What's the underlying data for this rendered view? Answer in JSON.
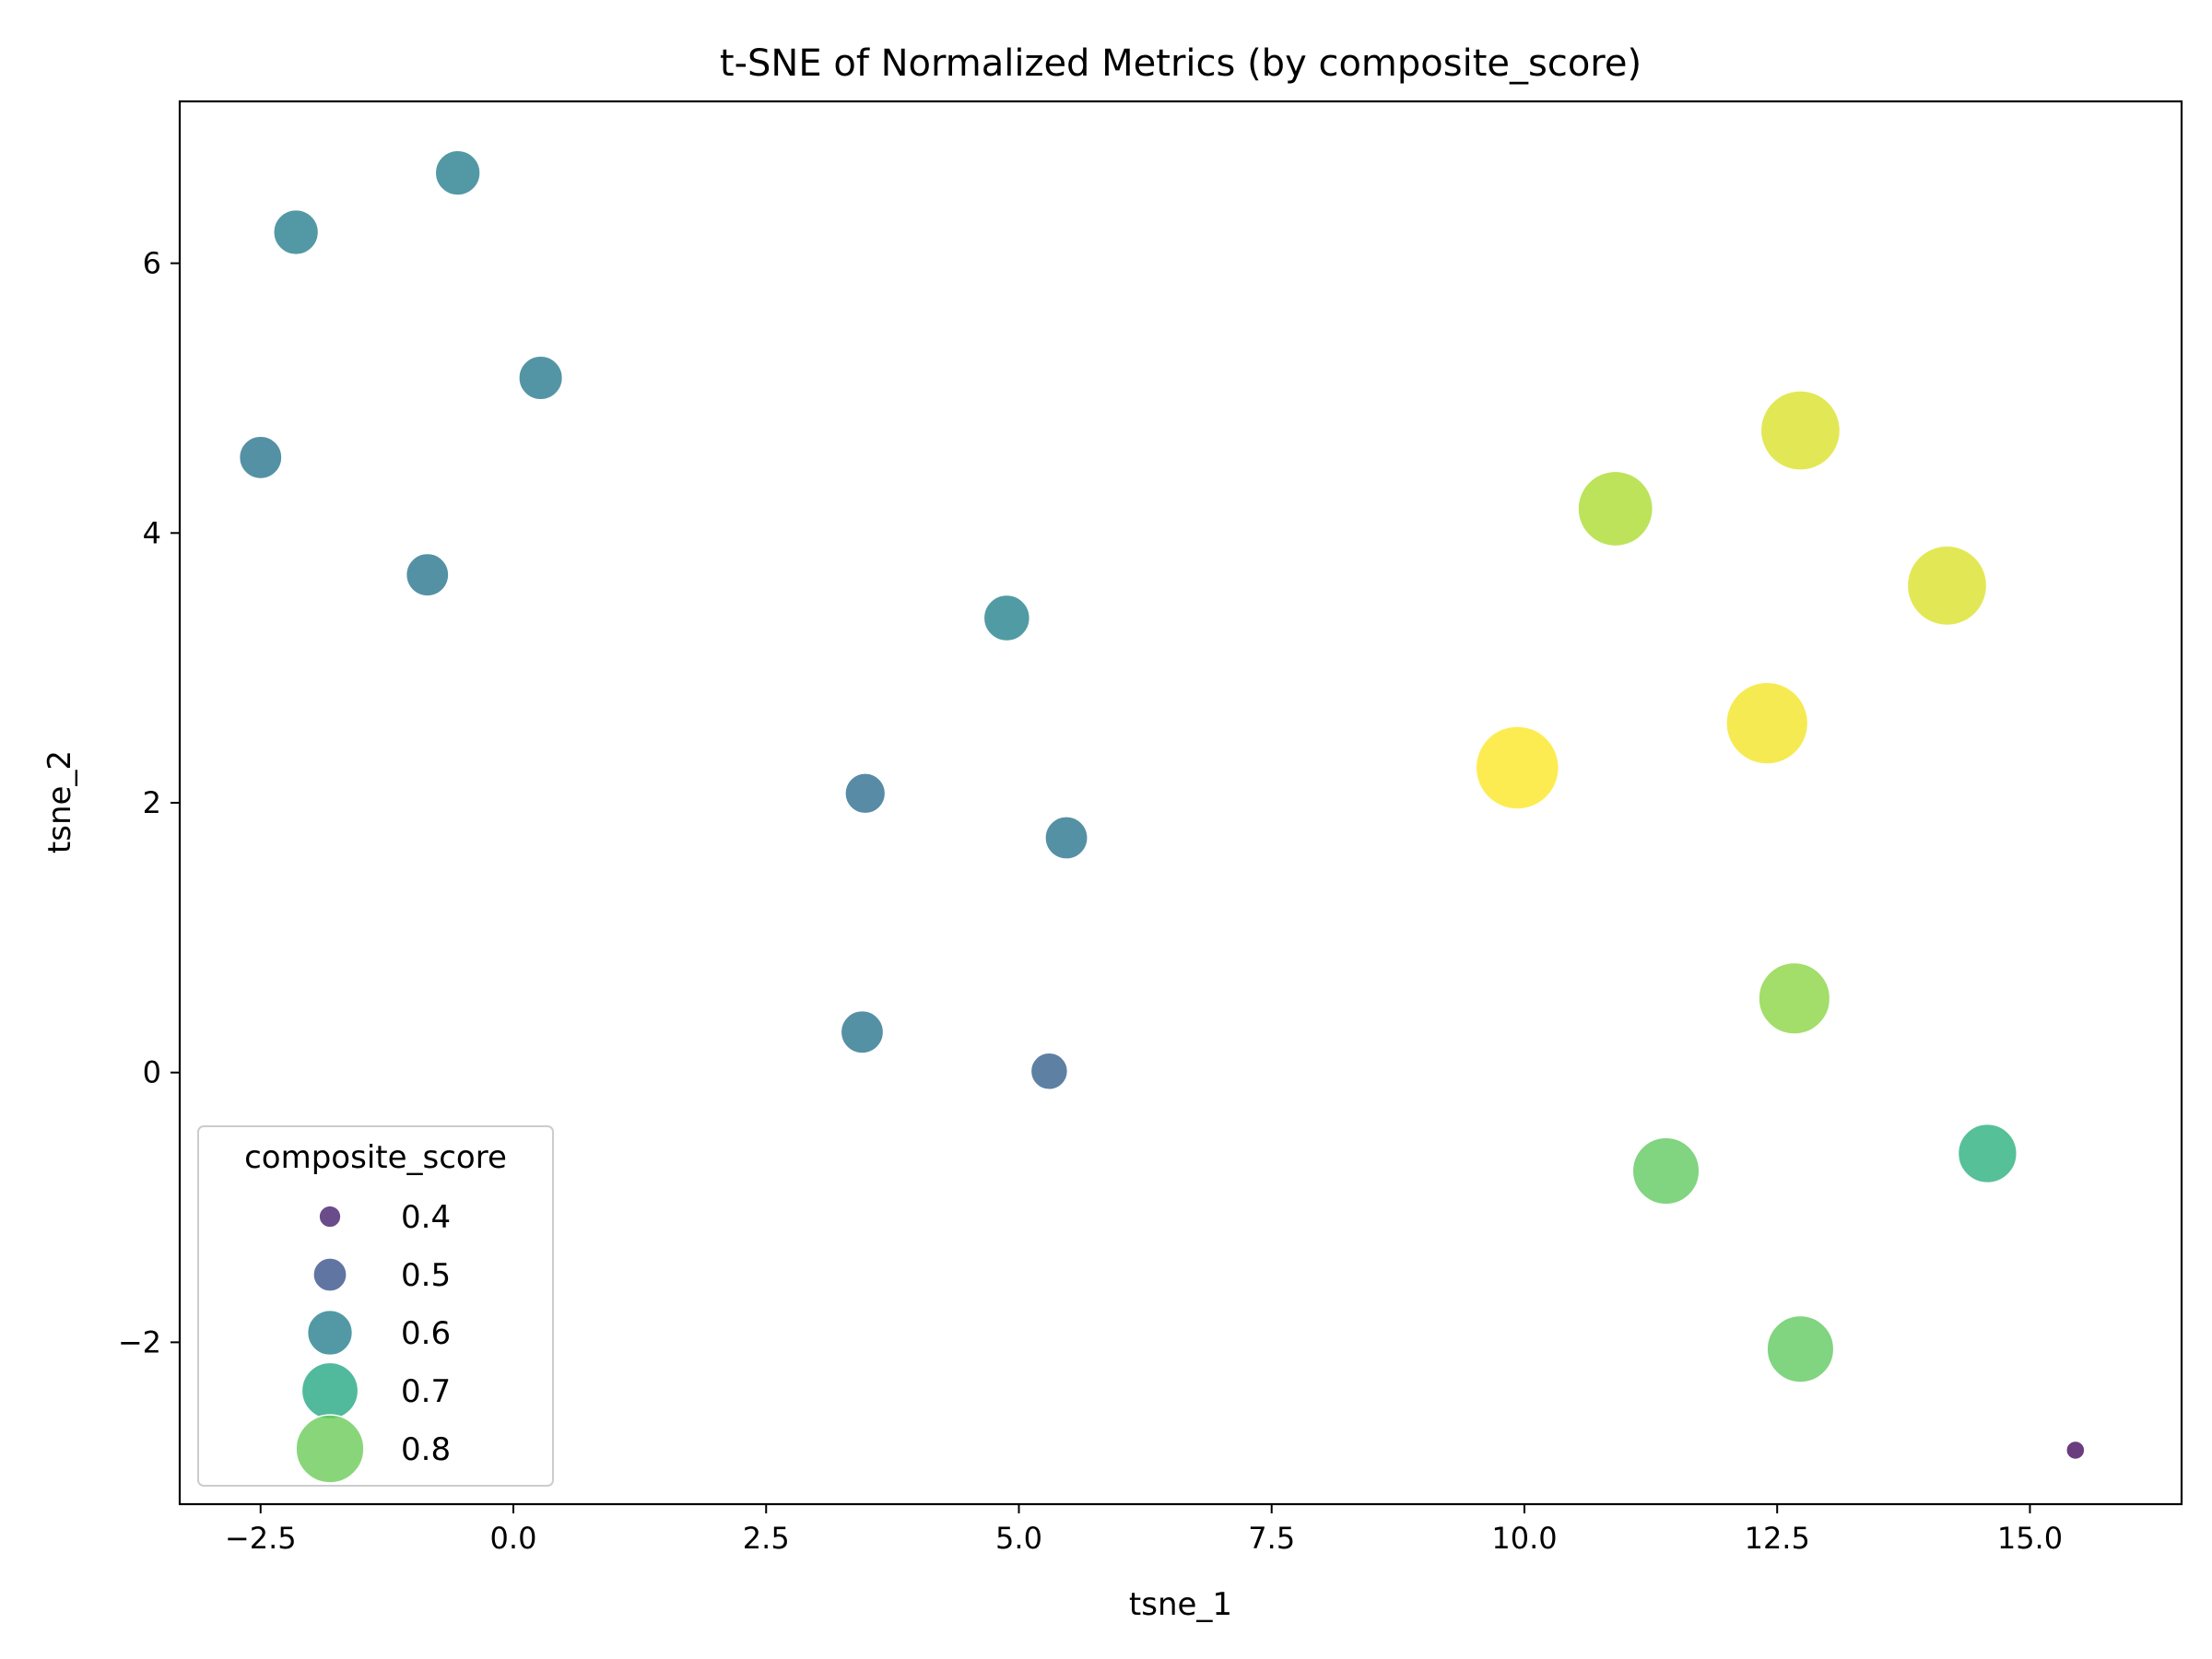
{
  "chart_data": {
    "type": "scatter",
    "title": "t-SNE of Normalized Metrics (by composite_score)",
    "xlabel": "tsne_1",
    "ylabel": "tsne_2",
    "xlim": [
      -3.3,
      16.5
    ],
    "ylim": [
      -3.2,
      7.2
    ],
    "x_ticks": [
      -2.5,
      0.0,
      2.5,
      5.0,
      7.5,
      10.0,
      12.5,
      15.0
    ],
    "x_tick_labels": [
      "−2.5",
      "0.0",
      "2.5",
      "5.0",
      "7.5",
      "10.0",
      "12.5",
      "15.0"
    ],
    "y_ticks": [
      -2,
      0,
      2,
      4,
      6
    ],
    "y_tick_labels": [
      "−2",
      "0",
      "2",
      "4",
      "6"
    ],
    "grid": false,
    "hue": "composite_score",
    "size": "composite_score",
    "points": [
      {
        "x": -0.55,
        "y": 6.67,
        "score": 0.6
      },
      {
        "x": -2.15,
        "y": 6.23,
        "score": 0.6
      },
      {
        "x": 0.27,
        "y": 5.15,
        "score": 0.59
      },
      {
        "x": -2.5,
        "y": 4.56,
        "score": 0.58
      },
      {
        "x": -0.85,
        "y": 3.69,
        "score": 0.58
      },
      {
        "x": 4.88,
        "y": 3.37,
        "score": 0.61
      },
      {
        "x": 3.48,
        "y": 2.07,
        "score": 0.56
      },
      {
        "x": 5.47,
        "y": 1.74,
        "score": 0.58
      },
      {
        "x": 3.45,
        "y": 0.3,
        "score": 0.58
      },
      {
        "x": 5.3,
        "y": 0.01,
        "score": 0.53
      },
      {
        "x": 12.73,
        "y": 4.76,
        "score": 0.9
      },
      {
        "x": 10.9,
        "y": 4.18,
        "score": 0.86
      },
      {
        "x": 14.18,
        "y": 3.61,
        "score": 0.9
      },
      {
        "x": 12.4,
        "y": 2.59,
        "score": 0.92
      },
      {
        "x": 9.93,
        "y": 2.26,
        "score": 0.93
      },
      {
        "x": 12.67,
        "y": 0.55,
        "score": 0.83
      },
      {
        "x": 11.4,
        "y": -0.73,
        "score": 0.79
      },
      {
        "x": 14.58,
        "y": -0.6,
        "score": 0.72
      },
      {
        "x": 12.73,
        "y": -2.05,
        "score": 0.79
      },
      {
        "x": 15.45,
        "y": -2.8,
        "score": 0.37
      }
    ],
    "legend": {
      "title": "composite_score",
      "position": "lower-left",
      "entries": [
        {
          "label": "0.4",
          "value": 0.4
        },
        {
          "label": "0.5",
          "value": 0.5
        },
        {
          "label": "0.6",
          "value": 0.6
        },
        {
          "label": "0.7",
          "value": 0.7
        },
        {
          "label": "0.8",
          "value": 0.8
        }
      ]
    },
    "colormap": "viridis",
    "color_range": [
      0.35,
      0.93
    ],
    "point_alpha": 0.8
  }
}
